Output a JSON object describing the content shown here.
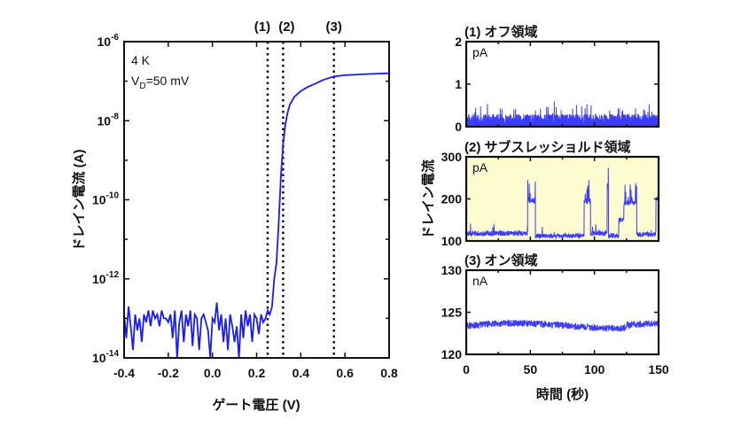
{
  "chart_data": [
    {
      "type": "line",
      "title": "",
      "xlabel": "ゲート電圧 (V)",
      "ylabel": "ドレイン電流 (A)",
      "yscale": "log",
      "xlim": [
        -0.4,
        0.8
      ],
      "ylim": [
        1e-14,
        1e-06
      ],
      "xticks": [
        "-0.4",
        "-0.2",
        "0.0",
        "0.2",
        "0.4",
        "0.6",
        "0.8"
      ],
      "yticks": [
        {
          "base": "10",
          "exp": "-6"
        },
        {
          "base": "10",
          "exp": "-8"
        },
        {
          "base": "10",
          "exp": "-10"
        },
        {
          "base": "10",
          "exp": "-12"
        },
        {
          "base": "10",
          "exp": "-14"
        }
      ],
      "annotations": {
        "temp": "4 K",
        "vd_prefix": "V",
        "vd_sub": "D",
        "vd_value": "=50 mV"
      },
      "markers": [
        {
          "label": "(1)",
          "x": 0.25
        },
        {
          "label": "(2)",
          "x": 0.32
        },
        {
          "label": "(3)",
          "x": 0.55
        }
      ],
      "series": [
        {
          "name": "Id-Vg",
          "color": "#1a1aff",
          "x": [
            -0.4,
            -0.39,
            -0.38,
            -0.37,
            -0.36,
            -0.35,
            -0.34,
            -0.33,
            -0.32,
            -0.31,
            -0.3,
            -0.29,
            -0.28,
            -0.27,
            -0.26,
            -0.25,
            -0.24,
            -0.23,
            -0.22,
            -0.21,
            -0.2,
            -0.19,
            -0.18,
            -0.17,
            -0.16,
            -0.15,
            -0.14,
            -0.13,
            -0.12,
            -0.11,
            -0.1,
            -0.09,
            -0.08,
            -0.07,
            -0.06,
            -0.05,
            -0.04,
            -0.03,
            -0.02,
            -0.01,
            0.0,
            0.01,
            0.02,
            0.03,
            0.04,
            0.05,
            0.06,
            0.07,
            0.08,
            0.09,
            0.1,
            0.11,
            0.12,
            0.13,
            0.14,
            0.15,
            0.16,
            0.17,
            0.18,
            0.19,
            0.2,
            0.21,
            0.22,
            0.23,
            0.24,
            0.25,
            0.26,
            0.27,
            0.28,
            0.29,
            0.3,
            0.31,
            0.32,
            0.33,
            0.34,
            0.35,
            0.37,
            0.4,
            0.43,
            0.47,
            0.5,
            0.55,
            0.6,
            0.7,
            0.8
          ],
          "log10y": [
            -12.9,
            -13.5,
            -12.7,
            -13.2,
            -13.8,
            -12.9,
            -13.3,
            -13.0,
            -13.6,
            -12.9,
            -13.1,
            -12.8,
            -13.2,
            -12.8,
            -13.0,
            -12.9,
            -13.2,
            -12.8,
            -13.0,
            -13.0,
            -13.1,
            -12.9,
            -13.5,
            -12.8,
            -14.0,
            -13.1,
            -12.8,
            -13.6,
            -12.9,
            -13.2,
            -12.8,
            -13.7,
            -12.9,
            -13.0,
            -13.8,
            -13.0,
            -12.9,
            -13.1,
            -13.3,
            -14.0,
            -13.0,
            -13.1,
            -12.6,
            -13.3,
            -12.9,
            -13.6,
            -13.0,
            -13.8,
            -12.9,
            -13.2,
            -13.6,
            -13.2,
            -14.1,
            -12.9,
            -13.5,
            -12.8,
            -13.2,
            -12.9,
            -13.6,
            -12.9,
            -13.0,
            -13.4,
            -12.9,
            -13.1,
            -13.0,
            -12.8,
            -12.9,
            -12.7,
            -12.0,
            -11.6,
            -10.6,
            -9.4,
            -8.6,
            -8.1,
            -7.8,
            -7.6,
            -7.4,
            -7.25,
            -7.15,
            -7.05,
            -6.97,
            -6.88,
            -6.85,
            -6.82,
            -6.8
          ]
        }
      ]
    },
    {
      "type": "line",
      "title": "(1) オフ領域",
      "unit": "pA",
      "xlim": [
        0,
        150
      ],
      "ylim": [
        0,
        2
      ],
      "yticks": [
        "0",
        "1",
        "2"
      ],
      "series": [
        {
          "name": "off",
          "color": "#1a1aff",
          "mean": 0.18,
          "noise": 0.12,
          "spikes": 0.6
        }
      ]
    },
    {
      "type": "line",
      "title": "(2) サブスレッショルド領域",
      "unit": "pA",
      "background": "#fdfbd0",
      "xlim": [
        0,
        150
      ],
      "ylim": [
        100,
        300
      ],
      "yticks": [
        "100",
        "200",
        "300"
      ],
      "series": [
        {
          "name": "subthreshold",
          "color": "#1a1aff",
          "segments": [
            {
              "t0": 0,
              "t1": 48,
              "level": 118
            },
            {
              "t0": 48,
              "t1": 54,
              "level": 195
            },
            {
              "t0": 54,
              "t1": 92,
              "level": 112
            },
            {
              "t0": 92,
              "t1": 97,
              "level": 195
            },
            {
              "t0": 97,
              "t1": 110,
              "level": 118
            },
            {
              "t0": 110,
              "t1": 111,
              "level": 230
            },
            {
              "t0": 111,
              "t1": 119,
              "level": 112
            },
            {
              "t0": 119,
              "t1": 123,
              "level": 150
            },
            {
              "t0": 123,
              "t1": 133,
              "level": 190
            },
            {
              "t0": 133,
              "t1": 148,
              "level": 115
            },
            {
              "t0": 148,
              "t1": 150,
              "level": 200
            }
          ]
        }
      ]
    },
    {
      "type": "line",
      "title": "(3) オン領域",
      "unit": "nA",
      "xlim": [
        0,
        150
      ],
      "ylim": [
        120,
        130
      ],
      "yticks": [
        "120",
        "125",
        "130"
      ],
      "xticks": [
        "0",
        "50",
        "100",
        "150"
      ],
      "xlabel": "時間 (秒)",
      "series": [
        {
          "name": "on",
          "color": "#1a1aff",
          "mean": 123.4
        }
      ]
    }
  ],
  "shared_ylabel": "ドレイン電流"
}
